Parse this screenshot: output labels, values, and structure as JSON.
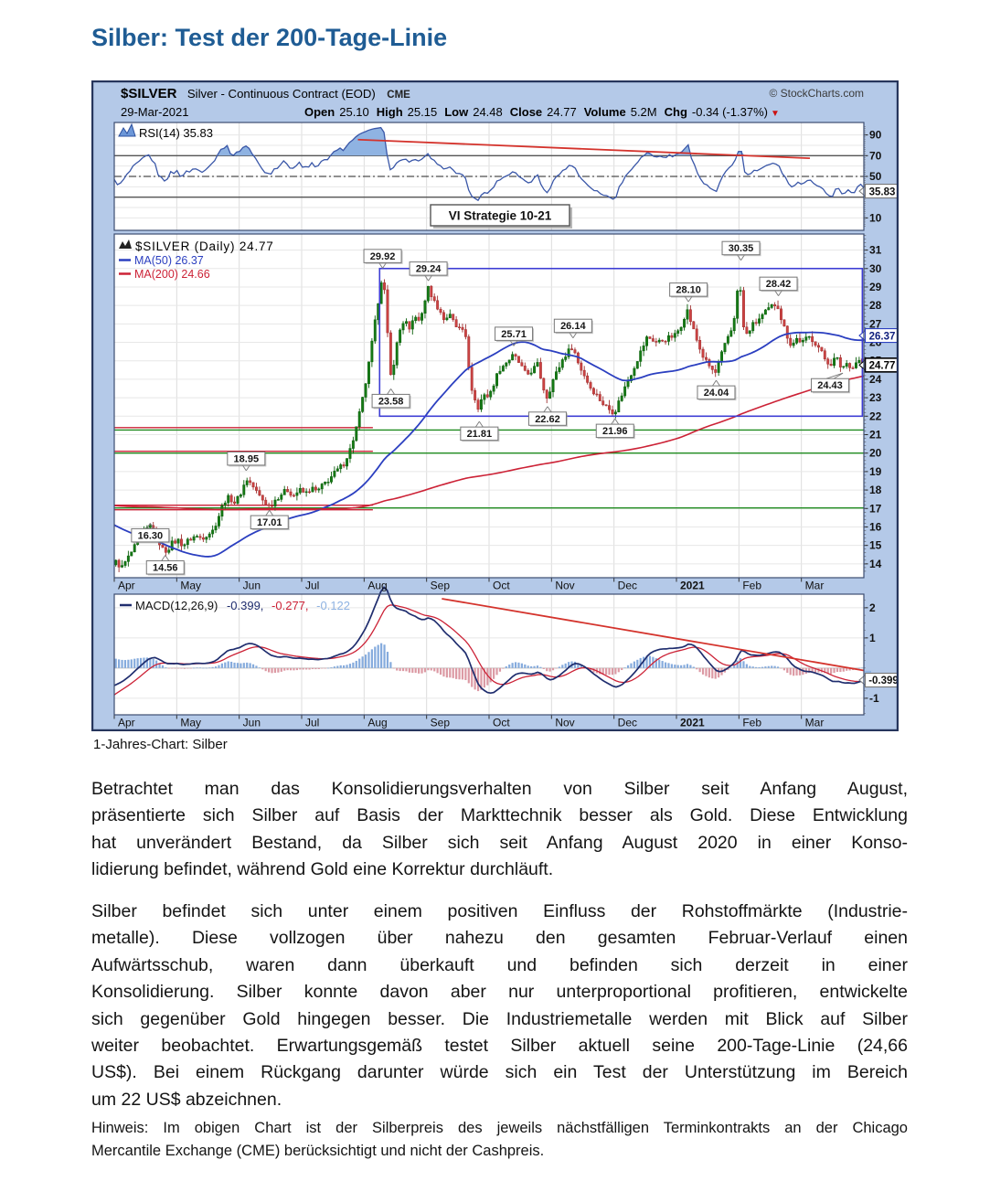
{
  "page": {
    "title": "Silber: Test der 200-Tage-Linie",
    "caption": "1-Jahres-Chart: Silber",
    "paragraph1_lines": [
      "Betrachtet man das Konsolidierungsverhalten von Silber seit Anfang August,",
      "präsentierte sich Silber auf Basis der Markttechnik besser als Gold. Diese Entwicklung",
      "hat unverändert Bestand, da Silber sich seit Anfang August 2020 in einer Konso-",
      "lidierung befindet, während Gold eine Korrektur durchläuft."
    ],
    "paragraph2_lines": [
      "Silber befindet sich unter einem positiven Einfluss der Rohstoffmärkte (Industrie-",
      "metalle). Diese vollzogen über nahezu den gesamten Februar-Verlauf einen",
      "Aufwärtsschub, waren dann überkauft und befinden sich derzeit in einer",
      "Konsolidierung. Silber konnte davon aber nur unterproportional profitieren, entwickelte",
      "sich gegenüber Gold hingegen besser. Die Industriemetalle werden mit Blick auf Silber",
      "weiter beobachtet. Erwartungsgemäß testet Silber aktuell seine 200-Tage-Linie (24,66",
      "US$). Bei einem Rückgang darunter würde sich ein Test der Unterstützung im Bereich",
      "um 22 US$ abzeichnen."
    ],
    "note_lines": [
      "Hinweis: Im obigen Chart ist der Silberpreis des jeweils nächstfälligen Terminkontrakts an der Chicago",
      "Mercantile Exchange (CME) berücksichtigt und nicht der Cashpreis."
    ]
  },
  "chart": {
    "header": {
      "symbol": "$SILVER",
      "name": "Silver - Continuous Contract (EOD)",
      "exchange": "CME",
      "source": "© StockCharts.com",
      "date": "29-Mar-2021",
      "stats": [
        [
          "Open",
          "25.10"
        ],
        [
          "High",
          "25.15"
        ],
        [
          "Low",
          "24.48"
        ],
        [
          "Close",
          "24.77"
        ],
        [
          "Volume",
          "5.2M"
        ],
        [
          "Chg",
          "-0.34 (-1.37%)"
        ]
      ],
      "chg_arrow": "▼"
    },
    "strategy_label": "VI Strategie 10-21",
    "months": [
      "Apr",
      "May",
      "Jun",
      "Jul",
      "Aug",
      "Sep",
      "Oct",
      "Nov",
      "Dec",
      "2021",
      "Feb",
      "Mar"
    ],
    "colors": {
      "title": "#1f5c94",
      "bg": "#b4c9e8",
      "frame": "#26355c",
      "panel_border": "#3c4c70",
      "grid": "#e7e7e7",
      "vgrid": "#dcdcdc",
      "up": "#157a15",
      "up_stroke": "#0b5e0b",
      "down": "#cc4343",
      "down_stroke": "#a03030",
      "ma50": "#2b3fc0",
      "ma200": "#cc2236",
      "box": "#3d3dd4",
      "rsi_line": "#3a57a8",
      "rsi_fill": "#8fb3e2",
      "trend": "#d4332c",
      "hline_green": "#1e8a1e",
      "hist_up": "#85abdd",
      "hist_down": "#dc9aa4",
      "macd_line": "#1f2d6e",
      "signal": "#cc2236",
      "light_blue": "#8fb3e2",
      "text": "#111111"
    }
  },
  "chart_data": [
    {
      "type": "line",
      "panel": "rsi",
      "title": "RSI(14) 35.83",
      "indicator": "RSI",
      "period": 14,
      "last_value": 35.83,
      "ylim": [
        0,
        100
      ],
      "yticks": [
        90,
        70,
        50,
        10
      ],
      "levels": {
        "overbought": 70,
        "mid": 50,
        "oversold": 30
      },
      "axis_marker": {
        "v": 35.83,
        "text": "35.83"
      },
      "trendline": {
        "x1": 0.325,
        "v1": 85.5,
        "x2": 0.928,
        "v2": 67.5
      }
    },
    {
      "type": "candlestick",
      "panel": "price",
      "title": "$SILVER (Daily) 24.77",
      "last_close": 24.77,
      "ma_legend": [
        {
          "label": "MA(50) 26.37",
          "period": 50,
          "value": 26.37
        },
        {
          "label": "MA(200) 24.66",
          "period": 200,
          "value": 24.66
        }
      ],
      "ylim": [
        13.25,
        31.87
      ],
      "yticks": [
        14,
        15,
        16,
        17,
        18,
        19,
        20,
        21,
        22,
        23,
        24,
        25,
        26,
        27,
        28,
        29,
        30,
        31
      ],
      "last_bar": {
        "open": 25.1,
        "high": 25.15,
        "low": 24.48,
        "close": 24.77
      },
      "price_path": [
        [
          0,
          14.1
        ],
        [
          0.008,
          13.8
        ],
        [
          0.016,
          14.3
        ],
        [
          0.025,
          14.9
        ],
        [
          0.034,
          15.4
        ],
        [
          0.042,
          15.9
        ],
        [
          0.048,
          16.1
        ],
        [
          0.055,
          15.5
        ],
        [
          0.062,
          14.8
        ],
        [
          0.068,
          14.7
        ],
        [
          0.075,
          15.1
        ],
        [
          0.083,
          15.3
        ],
        [
          0.09,
          15.0
        ],
        [
          0.098,
          15.3
        ],
        [
          0.106,
          15.5
        ],
        [
          0.115,
          15.4
        ],
        [
          0.122,
          15.6
        ],
        [
          0.13,
          15.8
        ],
        [
          0.137,
          16.5
        ],
        [
          0.145,
          17.4
        ],
        [
          0.152,
          17.6
        ],
        [
          0.16,
          17.3
        ],
        [
          0.168,
          17.9
        ],
        [
          0.175,
          18.6
        ],
        [
          0.182,
          18.3
        ],
        [
          0.19,
          17.8
        ],
        [
          0.198,
          17.4
        ],
        [
          0.206,
          17.1
        ],
        [
          0.214,
          17.5
        ],
        [
          0.222,
          17.8
        ],
        [
          0.23,
          18.0
        ],
        [
          0.238,
          17.7
        ],
        [
          0.246,
          18.0
        ],
        [
          0.254,
          17.8
        ],
        [
          0.262,
          18.1
        ],
        [
          0.27,
          17.9
        ],
        [
          0.278,
          18.3
        ],
        [
          0.286,
          18.6
        ],
        [
          0.295,
          19.0
        ],
        [
          0.305,
          19.4
        ],
        [
          0.315,
          20.3
        ],
        [
          0.323,
          21.5
        ],
        [
          0.33,
          22.8
        ],
        [
          0.337,
          24.3
        ],
        [
          0.344,
          26.2
        ],
        [
          0.35,
          27.8
        ],
        [
          0.355,
          29.3
        ],
        [
          0.358,
          29.6
        ],
        [
          0.362,
          27.8
        ],
        [
          0.366,
          25.0
        ],
        [
          0.369,
          23.9
        ],
        [
          0.374,
          25.4
        ],
        [
          0.38,
          26.6
        ],
        [
          0.387,
          27.3
        ],
        [
          0.394,
          26.5
        ],
        [
          0.4,
          27.6
        ],
        [
          0.407,
          27.0
        ],
        [
          0.414,
          28.3
        ],
        [
          0.419,
          29.0
        ],
        [
          0.425,
          28.3
        ],
        [
          0.43,
          28.0
        ],
        [
          0.44,
          27.2
        ],
        [
          0.448,
          27.6
        ],
        [
          0.455,
          26.8
        ],
        [
          0.462,
          26.9
        ],
        [
          0.468,
          26.7
        ],
        [
          0.474,
          24.0
        ],
        [
          0.48,
          23.0
        ],
        [
          0.486,
          22.3
        ],
        [
          0.492,
          23.3
        ],
        [
          0.5,
          23.0
        ],
        [
          0.508,
          24.0
        ],
        [
          0.515,
          24.6
        ],
        [
          0.525,
          25.0
        ],
        [
          0.533,
          25.3
        ],
        [
          0.54,
          24.9
        ],
        [
          0.55,
          24.2
        ],
        [
          0.558,
          24.5
        ],
        [
          0.565,
          24.8
        ],
        [
          0.572,
          23.6
        ],
        [
          0.578,
          23.0
        ],
        [
          0.585,
          23.9
        ],
        [
          0.592,
          24.5
        ],
        [
          0.6,
          25.2
        ],
        [
          0.608,
          25.6
        ],
        [
          0.612,
          25.8
        ],
        [
          0.62,
          24.8
        ],
        [
          0.628,
          24.2
        ],
        [
          0.635,
          23.6
        ],
        [
          0.643,
          23.2
        ],
        [
          0.652,
          22.7
        ],
        [
          0.66,
          22.4
        ],
        [
          0.668,
          22.2
        ],
        [
          0.678,
          23.2
        ],
        [
          0.688,
          24.1
        ],
        [
          0.7,
          25.2
        ],
        [
          0.712,
          26.3
        ],
        [
          0.725,
          26.0
        ],
        [
          0.738,
          26.2
        ],
        [
          0.75,
          26.4
        ],
        [
          0.758,
          27.0
        ],
        [
          0.765,
          27.8
        ],
        [
          0.772,
          26.9
        ],
        [
          0.78,
          25.9
        ],
        [
          0.788,
          25.1
        ],
        [
          0.797,
          24.6
        ],
        [
          0.803,
          24.3
        ],
        [
          0.812,
          25.4
        ],
        [
          0.82,
          26.3
        ],
        [
          0.827,
          26.9
        ],
        [
          0.832,
          28.6
        ],
        [
          0.836,
          29.3
        ],
        [
          0.84,
          26.9
        ],
        [
          0.845,
          26.4
        ],
        [
          0.852,
          26.9
        ],
        [
          0.858,
          27.1
        ],
        [
          0.865,
          27.4
        ],
        [
          0.872,
          27.7
        ],
        [
          0.88,
          28.0
        ],
        [
          0.886,
          28.1
        ],
        [
          0.892,
          27.2
        ],
        [
          0.898,
          26.5
        ],
        [
          0.905,
          25.8
        ],
        [
          0.912,
          26.2
        ],
        [
          0.92,
          26.0
        ],
        [
          0.928,
          26.3
        ],
        [
          0.935,
          26.1
        ],
        [
          0.942,
          25.7
        ],
        [
          0.95,
          25.1
        ],
        [
          0.957,
          24.8
        ],
        [
          0.965,
          25.2
        ],
        [
          0.972,
          24.6
        ],
        [
          0.98,
          24.9
        ],
        [
          0.987,
          24.6
        ],
        [
          0.993,
          25.05
        ],
        [
          1,
          24.9
        ]
      ],
      "seed_path": [
        [
          0,
          16.0
        ],
        [
          0.2,
          17.2
        ],
        [
          0.35,
          18.3
        ],
        [
          0.5,
          17.5
        ],
        [
          0.6,
          17.8
        ],
        [
          0.72,
          17.9
        ],
        [
          0.8,
          18.4
        ],
        [
          0.855,
          18.6
        ],
        [
          0.9,
          16.5
        ],
        [
          0.925,
          12.5
        ],
        [
          0.94,
          11.8
        ],
        [
          0.97,
          13.6
        ],
        [
          1,
          14.0
        ]
      ],
      "annotations": [
        {
          "x": 0.048,
          "v": 16.3,
          "side": "below",
          "text": "16.30"
        },
        {
          "x": 0.068,
          "v": 14.56,
          "side": "below",
          "text": "14.56"
        },
        {
          "x": 0.176,
          "v": 18.95,
          "side": "above",
          "text": "18.95"
        },
        {
          "x": 0.207,
          "v": 17.01,
          "side": "below",
          "text": "17.01"
        },
        {
          "x": 0.358,
          "v": 29.92,
          "side": "above",
          "text": "29.92"
        },
        {
          "x": 0.369,
          "v": 23.58,
          "side": "below",
          "text": "23.58"
        },
        {
          "x": 0.419,
          "v": 29.24,
          "side": "above",
          "text": "29.24"
        },
        {
          "x": 0.487,
          "v": 21.81,
          "side": "below",
          "text": "21.81"
        },
        {
          "x": 0.533,
          "v": 25.71,
          "side": "above",
          "text": "25.71"
        },
        {
          "x": 0.578,
          "v": 22.62,
          "side": "below",
          "text": "22.62"
        },
        {
          "x": 0.612,
          "v": 26.14,
          "side": "above",
          "text": "26.14"
        },
        {
          "x": 0.668,
          "v": 21.96,
          "side": "below",
          "text": "21.96"
        },
        {
          "x": 0.766,
          "v": 28.1,
          "side": "above",
          "text": "28.10"
        },
        {
          "x": 0.803,
          "v": 24.04,
          "side": "below",
          "text": "24.04"
        },
        {
          "x": 0.836,
          "v": 30.35,
          "side": "above",
          "text": "30.35"
        },
        {
          "x": 0.886,
          "v": 28.42,
          "side": "above",
          "text": "28.42"
        },
        {
          "x": 0.972,
          "v": 24.43,
          "side": "below",
          "text": "24.43",
          "dx": -14
        }
      ],
      "hlines": [
        {
          "v": 21.25,
          "x1": 0,
          "x2": 1,
          "color": "green"
        },
        {
          "v": 20.0,
          "x1": 0,
          "x2": 1,
          "color": "green"
        },
        {
          "v": 17.03,
          "x1": 0,
          "x2": 1,
          "color": "green"
        },
        {
          "v": 21.38,
          "x1": 0,
          "x2": 0.345,
          "color": "red"
        },
        {
          "v": 20.1,
          "x1": 0,
          "x2": 0.345,
          "color": "red"
        },
        {
          "v": 17.18,
          "x1": 0,
          "x2": 0.345,
          "color": "red"
        },
        {
          "v": 16.93,
          "x1": 0,
          "x2": 0.345,
          "color": "red"
        }
      ],
      "box": {
        "x1": 0.354,
        "x2": 0.998,
        "v1": 22.0,
        "v2": 30.0
      },
      "axis_markers": [
        {
          "v": 26.37,
          "text": "26.37",
          "style": "ma50"
        },
        {
          "v": 24.77,
          "text": "24.77",
          "style": "last"
        }
      ]
    },
    {
      "type": "line",
      "panel": "macd",
      "title": "MACD(12,26,9)",
      "params": [
        12,
        26,
        9
      ],
      "values": {
        "macd": -0.399,
        "signal": -0.277,
        "hist": -0.122
      },
      "value_labels": [
        "-0.399,",
        "-0.277,",
        "-0.122"
      ],
      "ylim": [
        -1.55,
        2.45
      ],
      "yticks": [
        2,
        1,
        -1
      ],
      "axis_marker": {
        "v": -0.399,
        "text": "-0.399"
      },
      "side_ticks": [
        {
          "v": -0.24,
          "color": "red"
        },
        {
          "v": -0.3,
          "color": "red"
        },
        {
          "v": -0.122,
          "color": "lightblue"
        }
      ],
      "trendline": {
        "x1": 0.437,
        "v1": 2.3,
        "x2": 1.0,
        "v2": -0.08
      }
    }
  ]
}
